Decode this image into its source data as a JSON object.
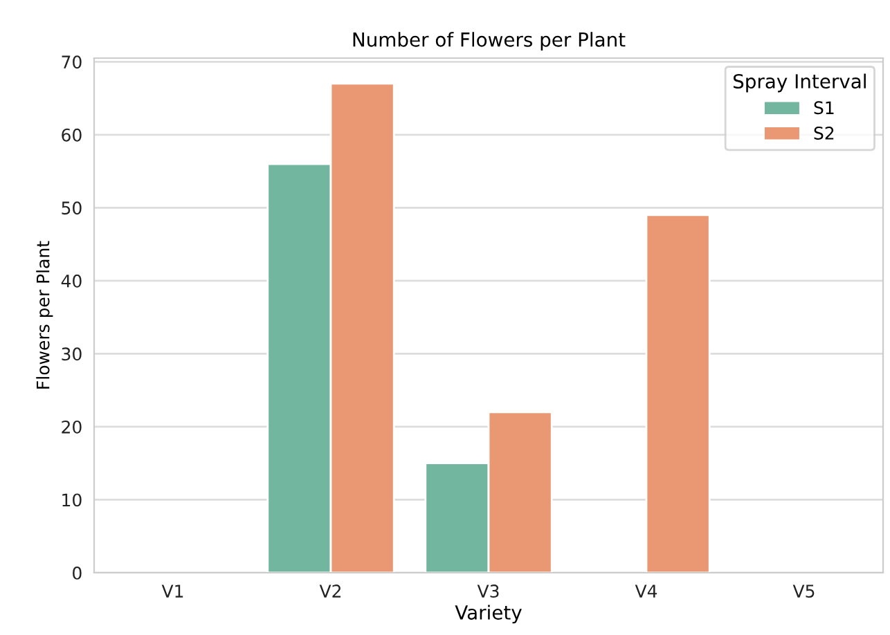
{
  "chart_data": {
    "type": "bar",
    "title": "Number of Flowers per Plant",
    "xlabel": "Variety",
    "ylabel": "Flowers per Plant",
    "legend_title": "Spray Interval",
    "categories": [
      "V1",
      "V2",
      "V3",
      "V4",
      "V5"
    ],
    "series": [
      {
        "name": "S1",
        "color": "#73b6a0",
        "values": [
          null,
          56,
          15,
          null,
          null
        ]
      },
      {
        "name": "S2",
        "color": "#e99873",
        "values": [
          null,
          67,
          22,
          49,
          null
        ]
      }
    ],
    "ylim": [
      0,
      70.5
    ],
    "yticks": [
      0,
      10,
      20,
      30,
      40,
      50,
      60,
      70
    ],
    "grid": "y",
    "legend": "top right"
  }
}
